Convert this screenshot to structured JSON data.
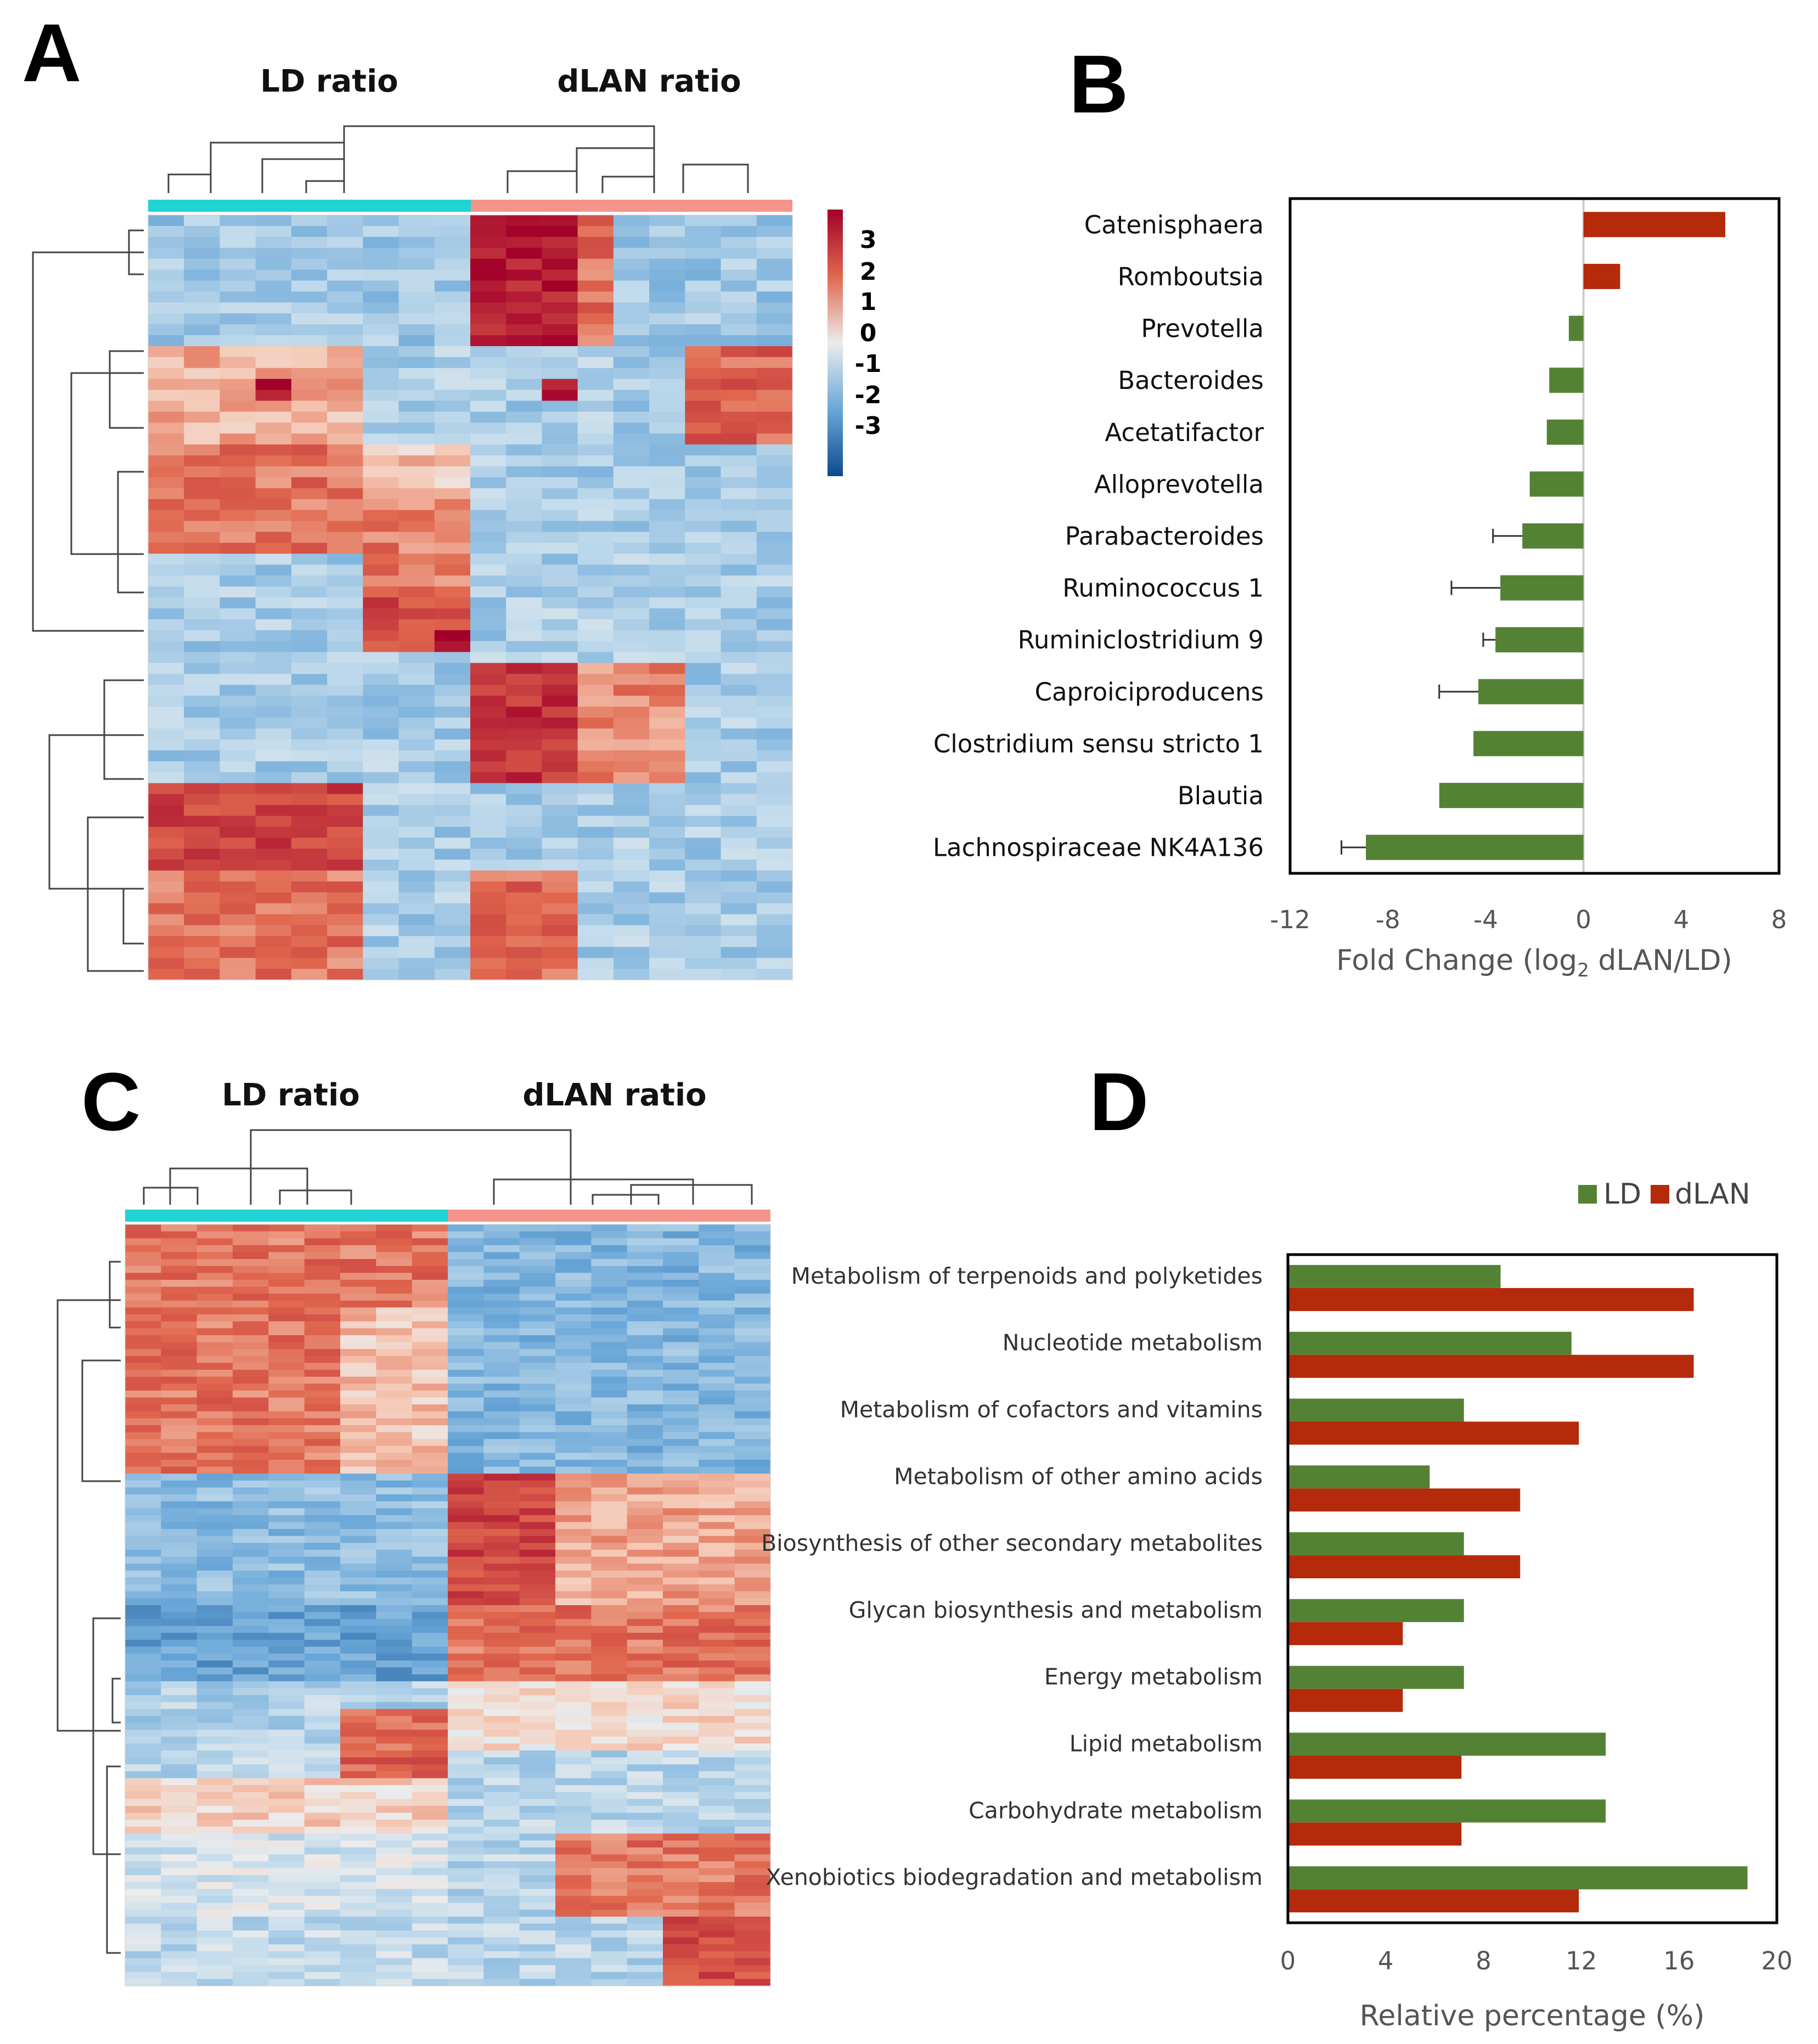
{
  "panel_labels": [
    "A",
    "B",
    "C",
    "D"
  ],
  "colors": {
    "LD": "#548235",
    "dLAN": "#b52a0a",
    "ld_group_bar": "#22d3d3",
    "dlan_group_bar": "#f4948a",
    "heat_high": "#a2002a",
    "heat_mid": "#e6e6e6",
    "heat_low": "#0d4a8c"
  },
  "panelA": {
    "group_labels": [
      "LD ratio",
      "dLAN ratio"
    ],
    "colorbar_ticks": [
      "3",
      "2",
      "1",
      "0",
      "-1",
      "-2",
      "-3"
    ]
  },
  "panelC": {
    "group_labels": [
      "LD ratio",
      "dLAN ratio"
    ]
  },
  "chart_data": [
    {
      "panel": "B",
      "type": "bar",
      "orientation": "horizontal",
      "categories": [
        "Catenisphaera",
        "Romboutsia",
        "Prevotella",
        "Bacteroides",
        "Acetatifactor",
        "Alloprevotella",
        "Parabacteroides",
        "Ruminococcus 1",
        "Ruminiclostridium 9",
        "Caproiciproducens",
        "Clostridium sensu stricto 1",
        "Blautia",
        "Lachnospiraceae NK4A136"
      ],
      "values": [
        5.8,
        1.5,
        -0.6,
        -1.4,
        -1.5,
        -2.2,
        -2.5,
        -3.4,
        -3.6,
        -4.3,
        -4.5,
        -5.9,
        -8.9
      ],
      "error": [
        0,
        0,
        0,
        0,
        0,
        0,
        1.2,
        2.0,
        0.5,
        1.6,
        0,
        0,
        1.0
      ],
      "xlim": [
        -12,
        8
      ],
      "xticks": [
        "-12",
        "-8",
        "-4",
        "0",
        "4",
        "8"
      ],
      "xlabel_main": "Fold Change (log",
      "xlabel_sub": "2",
      "xlabel_tail": " dLAN/LD)",
      "title": ""
    },
    {
      "panel": "D",
      "type": "bar",
      "orientation": "horizontal",
      "categories": [
        "Metabolism of terpenoids and polyketides",
        "Nucleotide metabolism",
        "Metabolism of cofactors and vitamins",
        "Metabolism of other amino acids",
        "Biosynthesis of other secondary metabolites",
        "Glycan biosynthesis and metabolism",
        "Energy metabolism",
        "Lipid metabolism",
        "Carbohydrate metabolism",
        "Xenobiotics biodegradation and metabolism"
      ],
      "series": [
        {
          "name": "LD",
          "values": [
            8.7,
            11.6,
            7.2,
            5.8,
            7.2,
            7.2,
            7.2,
            13.0,
            13.0,
            18.8
          ]
        },
        {
          "name": "dLAN",
          "values": [
            16.6,
            16.6,
            11.9,
            9.5,
            9.5,
            4.7,
            4.7,
            7.1,
            7.1,
            11.9
          ]
        }
      ],
      "xlim": [
        0,
        20
      ],
      "xticks": [
        "0",
        "4",
        "8",
        "12",
        "16",
        "20"
      ],
      "xlabel": "Relative percentage (%)",
      "legend": [
        "LD",
        "dLAN"
      ],
      "legend_position": "top-right",
      "title": ""
    }
  ]
}
